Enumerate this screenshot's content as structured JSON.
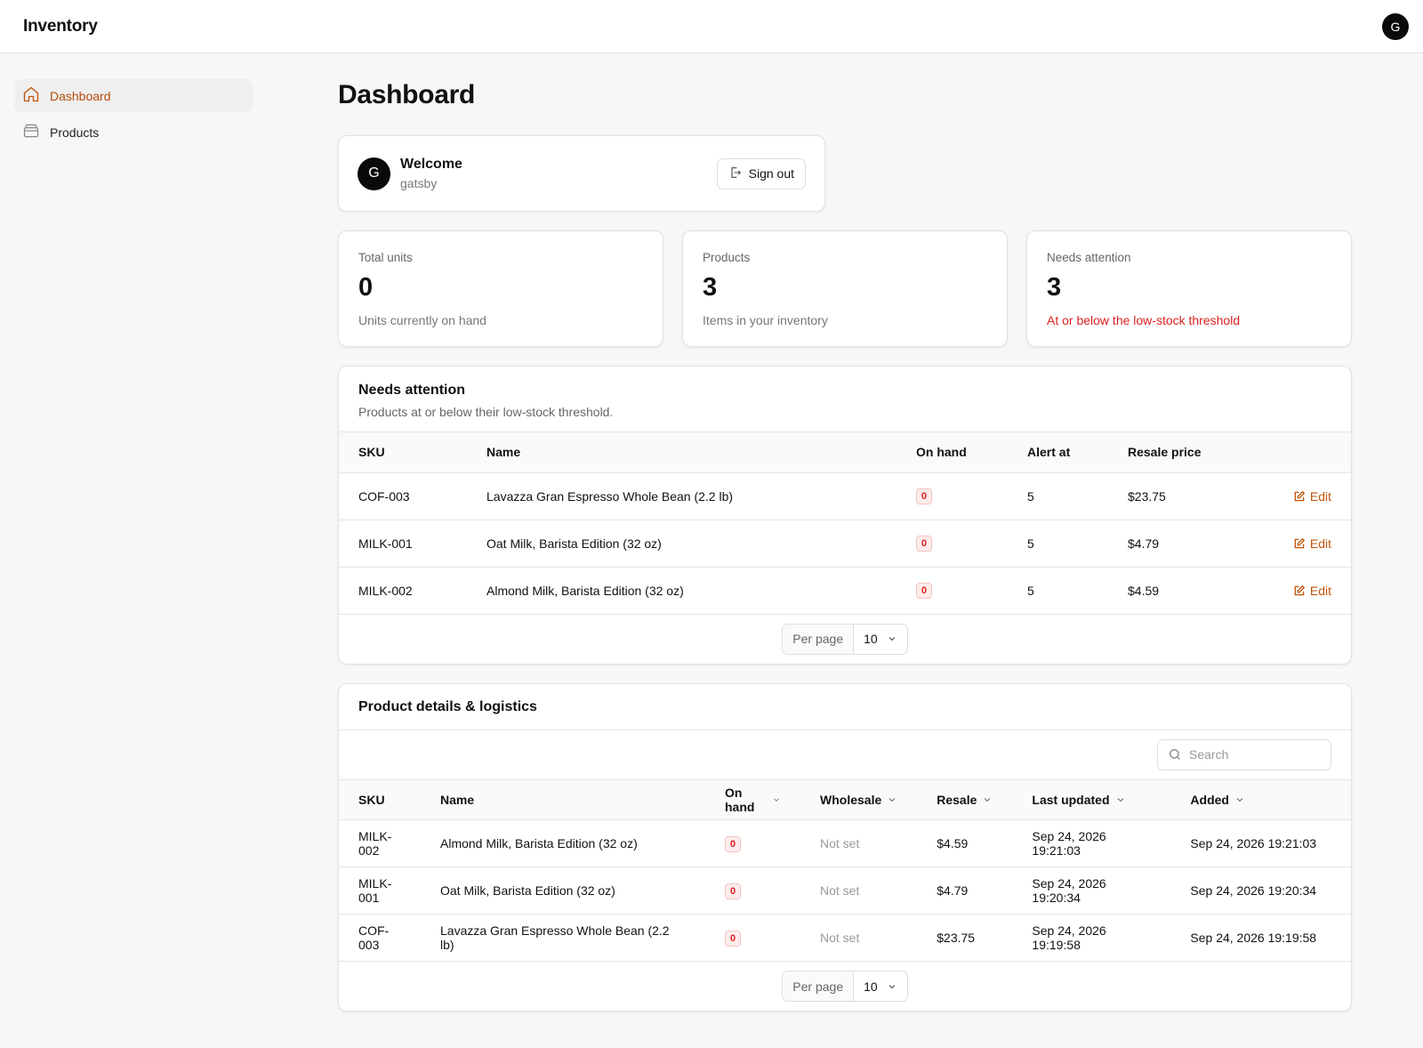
{
  "app": {
    "title": "Inventory",
    "avatar_initial": "G"
  },
  "sidebar": {
    "items": [
      {
        "label": "Dashboard",
        "icon": "home-icon",
        "active": true
      },
      {
        "label": "Products",
        "icon": "box-icon",
        "active": false
      }
    ]
  },
  "page": {
    "title": "Dashboard"
  },
  "welcome": {
    "initial": "G",
    "title": "Welcome",
    "username": "gatsby",
    "signout_label": "Sign out"
  },
  "stats": [
    {
      "label": "Total units",
      "value": "0",
      "sub": "Units currently on hand"
    },
    {
      "label": "Products",
      "value": "3",
      "sub": "Items in your inventory"
    },
    {
      "label": "Needs attention",
      "value": "3",
      "sub": "At or below the low-stock threshold"
    }
  ],
  "attention": {
    "title": "Needs attention",
    "description": "Products at or below their low-stock threshold.",
    "columns": [
      "SKU",
      "Name",
      "On hand",
      "Alert at",
      "Resale price"
    ],
    "edit_label": "Edit",
    "rows": [
      {
        "sku": "COF-003",
        "name": "Lavazza Gran Espresso Whole Bean (2.2 lb)",
        "on_hand": "0",
        "alert_at": "5",
        "resale": "$23.75"
      },
      {
        "sku": "MILK-001",
        "name": "Oat Milk, Barista Edition (32 oz)",
        "on_hand": "0",
        "alert_at": "5",
        "resale": "$4.79"
      },
      {
        "sku": "MILK-002",
        "name": "Almond Milk, Barista Edition (32 oz)",
        "on_hand": "0",
        "alert_at": "5",
        "resale": "$4.59"
      }
    ],
    "pager": {
      "label": "Per page",
      "value": "10"
    }
  },
  "details": {
    "title": "Product details & logistics",
    "search_placeholder": "Search",
    "columns": [
      "SKU",
      "Name",
      "On hand",
      "Wholesale",
      "Resale",
      "Last updated",
      "Added"
    ],
    "rows": [
      {
        "sku": "MILK-002",
        "name": "Almond Milk, Barista Edition (32 oz)",
        "on_hand": "0",
        "wholesale": "Not set",
        "resale": "$4.59",
        "updated": "Sep 24, 2026 19:21:03",
        "added": "Sep 24, 2026 19:21:03"
      },
      {
        "sku": "MILK-001",
        "name": "Oat Milk, Barista Edition (32 oz)",
        "on_hand": "0",
        "wholesale": "Not set",
        "resale": "$4.79",
        "updated": "Sep 24, 2026 19:20:34",
        "added": "Sep 24, 2026 19:20:34"
      },
      {
        "sku": "COF-003",
        "name": "Lavazza Gran Espresso Whole Bean (2.2 lb)",
        "on_hand": "0",
        "wholesale": "Not set",
        "resale": "$23.75",
        "updated": "Sep 24, 2026 19:19:58",
        "added": "Sep 24, 2026 19:19:58"
      }
    ],
    "pager": {
      "label": "Per page",
      "value": "10"
    }
  },
  "colors": {
    "accent": "#c2540a",
    "danger": "#dc1f1f"
  }
}
